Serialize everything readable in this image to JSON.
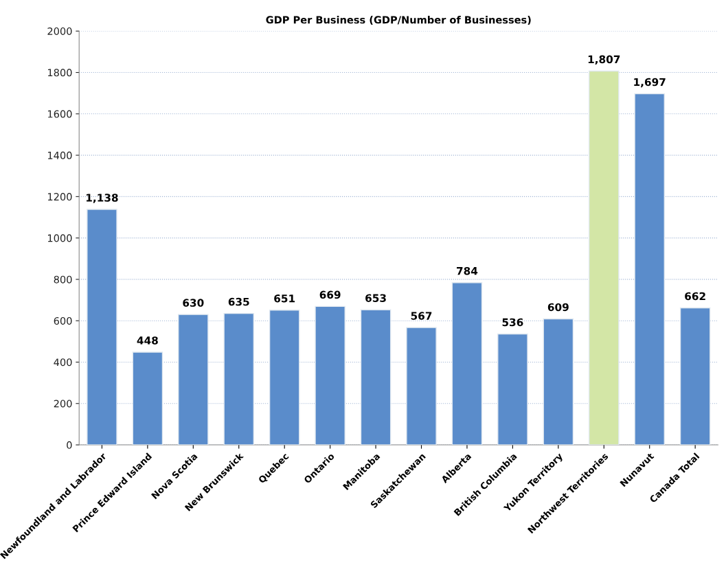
{
  "chart_data": {
    "type": "bar",
    "title": "GDP Per Business (GDP/Number of Businesses)",
    "categories": [
      "Newfoundland and Labrador",
      "Prince Edward Island",
      "Nova Scotia",
      "New Brunswick",
      "Quebec",
      "Ontario",
      "Manitoba",
      "Saskatchewan",
      "Alberta",
      "British Columbia",
      "Yukon Territory",
      "Northwest Territories",
      "Nunavut",
      "Canada Total"
    ],
    "values": [
      1138,
      448,
      630,
      635,
      651,
      669,
      653,
      567,
      784,
      536,
      609,
      1807,
      1697,
      662
    ],
    "colors": [
      "#5a8ccb",
      "#5a8ccb",
      "#5a8ccb",
      "#5a8ccb",
      "#5a8ccb",
      "#5a8ccb",
      "#5a8ccb",
      "#5a8ccb",
      "#5a8ccb",
      "#5a8ccb",
      "#5a8ccb",
      "#d3e6a6",
      "#5a8ccb",
      "#5a8ccb"
    ],
    "value_labels": [
      "1,138",
      "448",
      "630",
      "635",
      "651",
      "669",
      "653",
      "567",
      "784",
      "536",
      "609",
      "1,807",
      "1,697",
      "662"
    ],
    "ylim": [
      0,
      2000
    ],
    "yticks": [
      0,
      200,
      400,
      600,
      800,
      1000,
      1200,
      1400,
      1600,
      1800,
      2000
    ],
    "grid": "y",
    "legend": false
  }
}
